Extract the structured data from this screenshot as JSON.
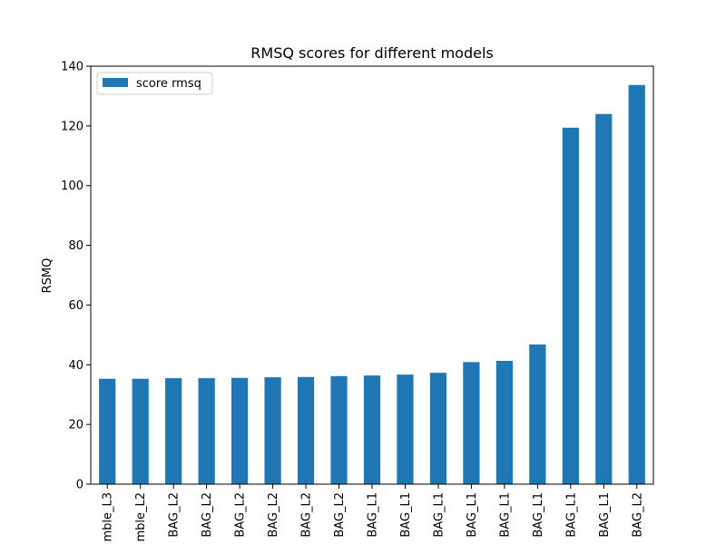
{
  "chart_data": {
    "type": "bar",
    "title": "RMSQ scores for different models",
    "xlabel": "",
    "ylabel": "RSMQ",
    "ylim": [
      0,
      140
    ],
    "yticks": [
      0,
      20,
      40,
      60,
      80,
      100,
      120,
      140
    ],
    "grid": false,
    "legend_position": "top-left",
    "categories": [
      "mble_L3",
      "mble_L2",
      "BAG_L2",
      "BAG_L2",
      "BAG_L2",
      "BAG_L2",
      "BAG_L2",
      "BAG_L2",
      "BAG_L1",
      "BAG_L1",
      "BAG_L1",
      "BAG_L1",
      "BAG_L1",
      "BAG_L1",
      "BAG_L1",
      "BAG_L1",
      "BAG_L2"
    ],
    "series": [
      {
        "name": "score rmsq",
        "color": "#1f77b4",
        "values": [
          35.3,
          35.3,
          35.5,
          35.5,
          35.6,
          35.8,
          35.9,
          36.2,
          36.4,
          36.7,
          37.3,
          40.9,
          41.3,
          46.8,
          119.4,
          124.0,
          133.7
        ]
      }
    ]
  }
}
